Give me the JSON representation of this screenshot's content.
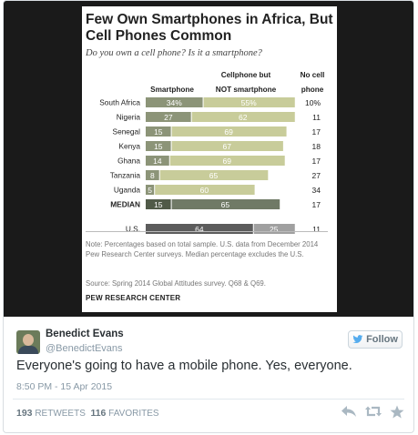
{
  "chart": {
    "title": "Few Own Smartphones in Africa, But Cell Phones Common",
    "subtitle": "Do you own a cell phone? Is it a smartphone?",
    "note": "Note: Percentages based on total sample. U.S. data from December 2014 Pew Research Center surveys. Median percentage excludes the U.S.",
    "source": "Source: Spring 2014 Global Attitudes survey. Q68 & Q69.",
    "org": "PEW RESEARCH CENTER"
  },
  "chart_data": {
    "type": "bar",
    "stacked": true,
    "title": "Few Own Smartphones in Africa, But Cell Phones Common",
    "subtitle": "Do you own a cell phone? Is it a smartphone?",
    "series_headers": [
      "Smartphone",
      "Cellphone but NOT smartphone",
      "No cell phone"
    ],
    "categories": [
      "South Africa",
      "Nigeria",
      "Senegal",
      "Kenya",
      "Ghana",
      "Tanzania",
      "Uganda",
      "MEDIAN",
      "U.S."
    ],
    "series": [
      {
        "name": "Smartphone",
        "values": [
          34,
          27,
          15,
          15,
          14,
          8,
          5,
          15,
          64
        ]
      },
      {
        "name": "Cellphone but NOT smartphone",
        "values": [
          55,
          62,
          69,
          67,
          69,
          65,
          60,
          65,
          25
        ]
      },
      {
        "name": "No cell phone",
        "values": [
          10,
          11,
          17,
          18,
          17,
          27,
          34,
          17,
          11
        ]
      }
    ],
    "value_labels": {
      "smart": [
        "34%",
        "27",
        "15",
        "15",
        "14",
        "8",
        "5",
        "15",
        "64"
      ],
      "cell": [
        "55%",
        "62",
        "69",
        "67",
        "69",
        "65",
        "60",
        "65",
        "25"
      ],
      "none": [
        "10%",
        "11",
        "17",
        "18",
        "17",
        "27",
        "34",
        "17",
        "11"
      ]
    },
    "colors": {
      "smart": "#8c9478",
      "cell": "#c8cc9a",
      "median_smart": "#505a48",
      "median_cell": "#707a66",
      "us_smart": "#5c5c5c",
      "us_cell": "#a0a0a0"
    },
    "xlim": [
      0,
      100
    ]
  },
  "user": {
    "name": "Benedict Evans",
    "handle": "@BenedictEvans",
    "follow_label": "Follow"
  },
  "tweet": {
    "text": "Everyone's going to have a mobile phone. Yes, everyone.",
    "timestamp": "8:50 PM - 15 Apr 2015",
    "retweets": "193",
    "retweets_label": "RETWEETS",
    "favorites": "116",
    "favorites_label": "FAVORITES"
  },
  "icons": {
    "follow": "bird-icon",
    "reply": "reply-icon",
    "retweet": "retweet-icon",
    "favorite": "star-icon"
  }
}
